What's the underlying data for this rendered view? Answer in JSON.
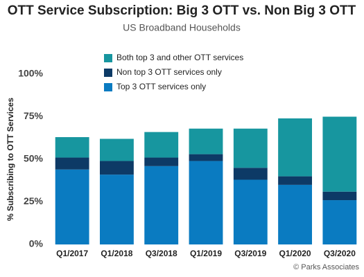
{
  "chart_data": {
    "type": "stacked_bar",
    "title": "OTT Service Subscription: Big 3 OTT vs. Non Big 3 OTT",
    "subtitle": "US Broadband Households",
    "y_label": "% Subscribing to OTT Services",
    "source": "© Parks Associates",
    "categories": [
      "Q1/2017",
      "Q1/2018",
      "Q3/2018",
      "Q1/2019",
      "Q3/2019",
      "Q1/2020",
      "Q3/2020"
    ],
    "series": [
      {
        "name": "Top 3 OTT services only",
        "color": "#0a7bc1",
        "values": [
          44,
          41,
          46,
          49,
          38,
          35,
          26
        ]
      },
      {
        "name": "Non top 3 OTT services only",
        "color": "#0d3a66",
        "values": [
          7,
          8,
          5,
          4,
          7,
          5,
          5
        ]
      },
      {
        "name": "Both top 3 and other OTT services",
        "color": "#17969f",
        "values": [
          12,
          13,
          15,
          15,
          23,
          34,
          44
        ]
      }
    ],
    "ylim": [
      0,
      100
    ],
    "yticks": [
      {
        "value": 0,
        "label": "0%"
      },
      {
        "value": 25,
        "label": "25%"
      },
      {
        "value": 50,
        "label": "50%"
      },
      {
        "value": 75,
        "label": "75%"
      },
      {
        "value": 100,
        "label": "100%"
      }
    ],
    "grid": false
  }
}
